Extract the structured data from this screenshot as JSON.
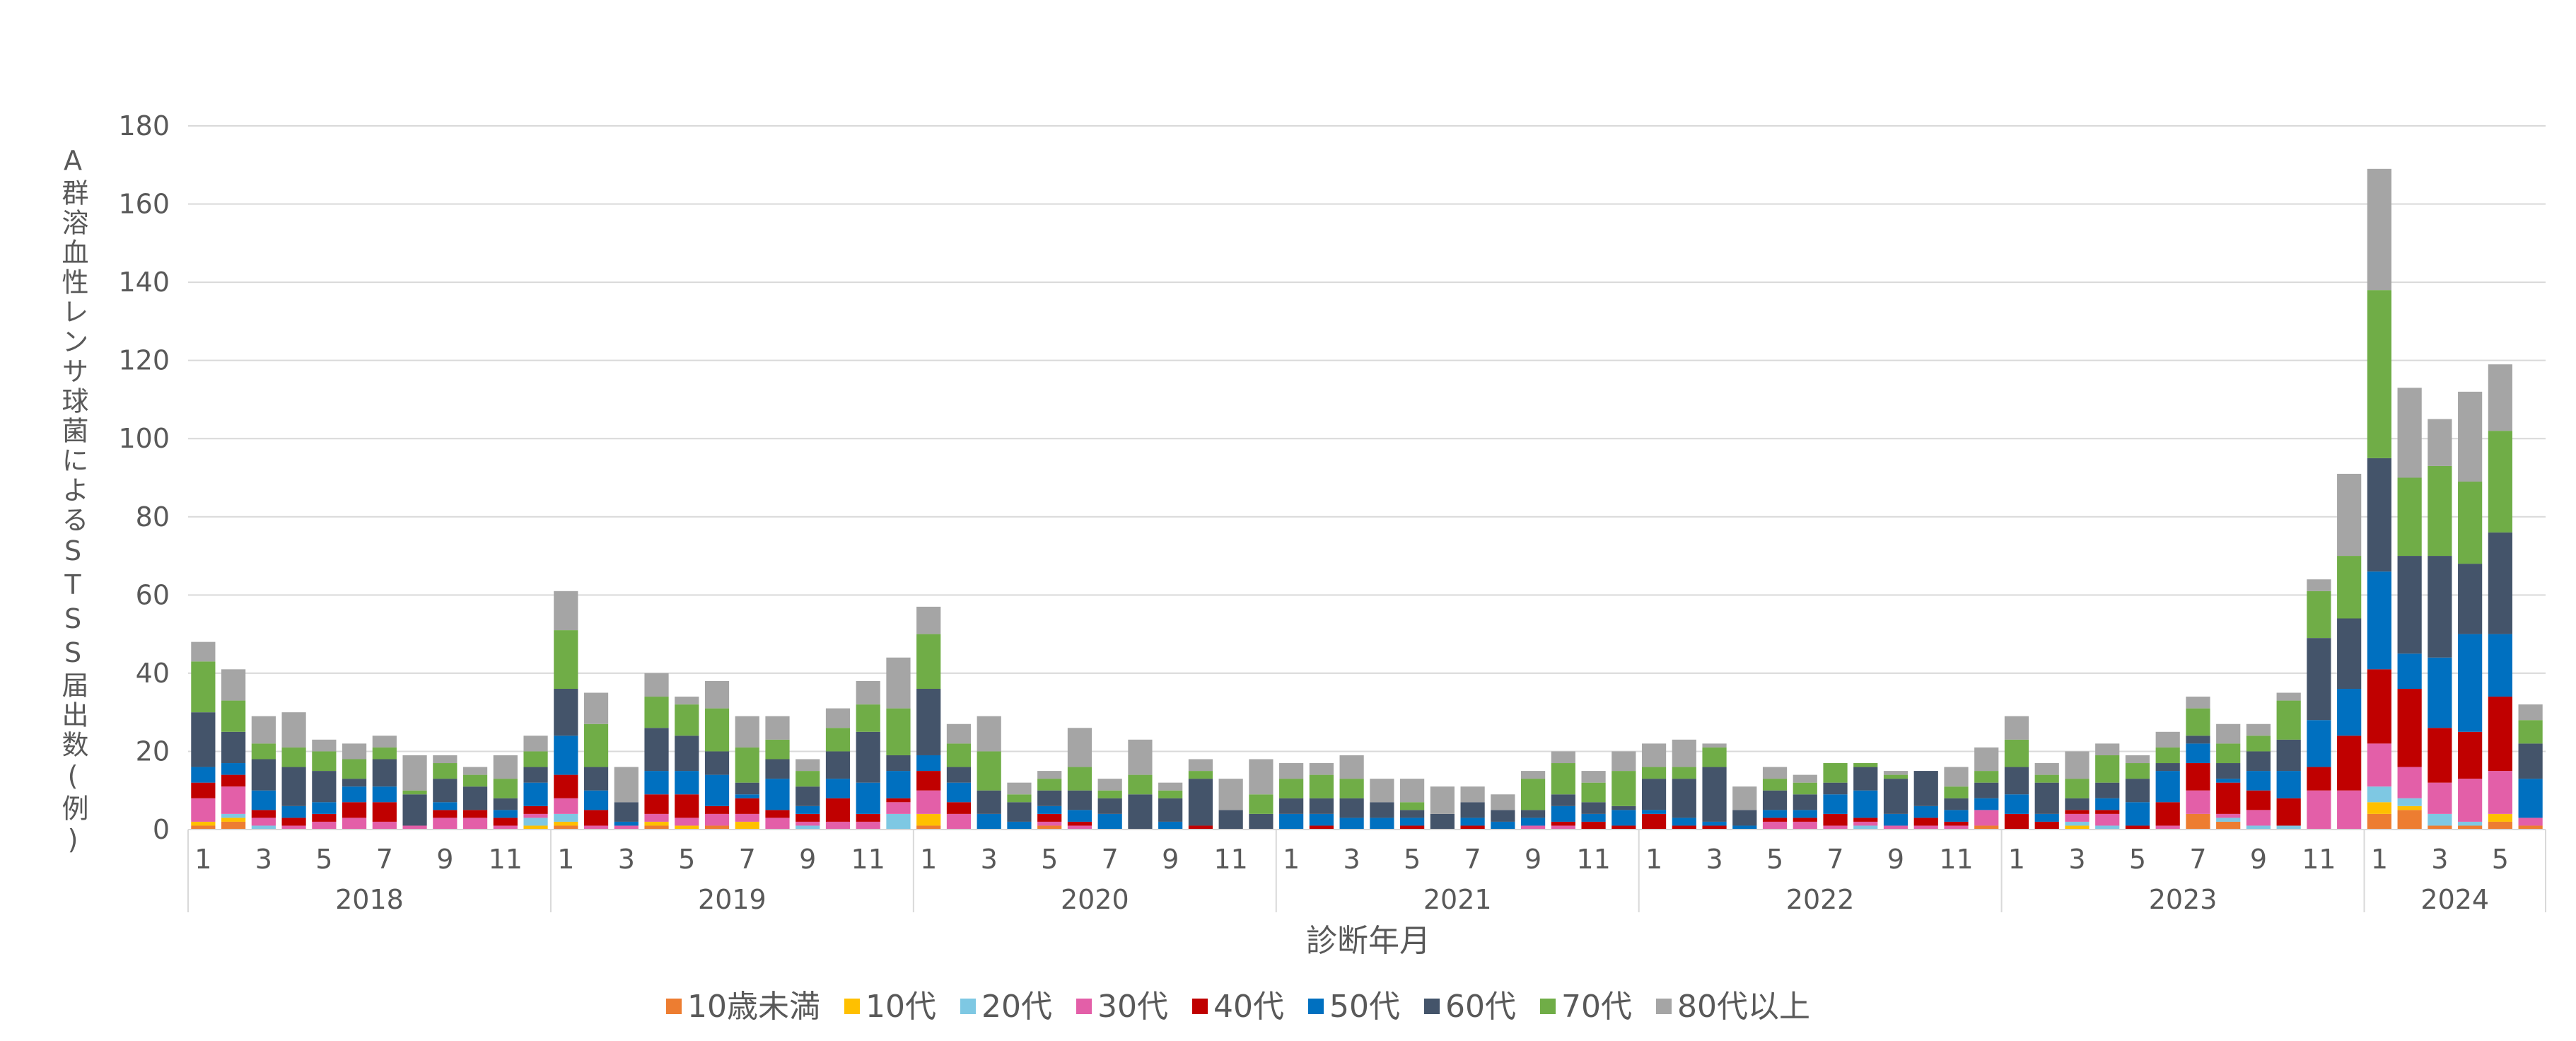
{
  "chart_data": {
    "type": "bar",
    "stacked": true,
    "title": "",
    "ylabel": "A群溶血性レンサ球菌によるSTSS届出数(例)",
    "xlabel": "診断年月",
    "ylim": [
      0,
      180
    ],
    "y_ticks": [
      "0",
      "20",
      "40",
      "60",
      "80",
      "100",
      "120",
      "140",
      "160",
      "180"
    ],
    "grid": true,
    "legend_position": "bottom",
    "years": [
      "2018",
      "2019",
      "2020",
      "2021",
      "2022",
      "2023",
      "2024"
    ],
    "categories": [
      "2018-01",
      "2018-02",
      "2018-03",
      "2018-04",
      "2018-05",
      "2018-06",
      "2018-07",
      "2018-08",
      "2018-09",
      "2018-10",
      "2018-11",
      "2018-12",
      "2019-01",
      "2019-02",
      "2019-03",
      "2019-04",
      "2019-05",
      "2019-06",
      "2019-07",
      "2019-08",
      "2019-09",
      "2019-10",
      "2019-11",
      "2019-12",
      "2020-01",
      "2020-02",
      "2020-03",
      "2020-04",
      "2020-05",
      "2020-06",
      "2020-07",
      "2020-08",
      "2020-09",
      "2020-10",
      "2020-11",
      "2020-12",
      "2021-01",
      "2021-02",
      "2021-03",
      "2021-04",
      "2021-05",
      "2021-06",
      "2021-07",
      "2021-08",
      "2021-09",
      "2021-10",
      "2021-11",
      "2021-12",
      "2022-01",
      "2022-02",
      "2022-03",
      "2022-04",
      "2022-05",
      "2022-06",
      "2022-07",
      "2022-08",
      "2022-09",
      "2022-10",
      "2022-11",
      "2022-12",
      "2023-01",
      "2023-02",
      "2023-03",
      "2023-04",
      "2023-05",
      "2023-06",
      "2023-07",
      "2023-08",
      "2023-09",
      "2023-10",
      "2023-11",
      "2023-12",
      "2024-01",
      "2024-02",
      "2024-03",
      "2024-04",
      "2024-05",
      "2024-06"
    ],
    "month_tick_labels": [
      "1",
      "",
      "3",
      "",
      "5",
      "",
      "7",
      "",
      "9",
      "",
      "11",
      ""
    ],
    "series": [
      {
        "name": "10歳未満",
        "color": "#ED7D31",
        "values": [
          1,
          2,
          0,
          0,
          0,
          0,
          0,
          0,
          0,
          0,
          0,
          0,
          1,
          0,
          0,
          1,
          0,
          1,
          0,
          0,
          0,
          0,
          0,
          0,
          1,
          0,
          0,
          0,
          1,
          0,
          0,
          0,
          0,
          0,
          0,
          0,
          0,
          0,
          0,
          0,
          0,
          0,
          0,
          0,
          0,
          0,
          0,
          0,
          0,
          0,
          0,
          0,
          0,
          0,
          0,
          0,
          0,
          0,
          0,
          1,
          0,
          0,
          0,
          0,
          0,
          0,
          4,
          2,
          0,
          0,
          0,
          0,
          4,
          5,
          1,
          1,
          2,
          1
        ]
      },
      {
        "name": "10代",
        "color": "#FFC000",
        "values": [
          1,
          1,
          0,
          0,
          0,
          0,
          0,
          0,
          0,
          0,
          0,
          1,
          1,
          0,
          0,
          1,
          1,
          0,
          2,
          0,
          0,
          0,
          0,
          0,
          3,
          0,
          0,
          0,
          0,
          0,
          0,
          0,
          0,
          0,
          0,
          0,
          0,
          0,
          0,
          0,
          0,
          0,
          0,
          0,
          0,
          0,
          0,
          0,
          0,
          0,
          0,
          0,
          0,
          0,
          0,
          0,
          0,
          0,
          0,
          0,
          0,
          0,
          1,
          0,
          0,
          0,
          0,
          0,
          0,
          0,
          0,
          0,
          3,
          1,
          0,
          0,
          2,
          0
        ]
      },
      {
        "name": "20代",
        "color": "#7EC8E3",
        "values": [
          0,
          1,
          1,
          0,
          0,
          0,
          0,
          0,
          0,
          0,
          0,
          2,
          2,
          0,
          0,
          0,
          0,
          0,
          0,
          0,
          1,
          0,
          0,
          4,
          0,
          0,
          0,
          0,
          0,
          0,
          0,
          0,
          0,
          0,
          0,
          0,
          0,
          0,
          0,
          0,
          0,
          0,
          0,
          0,
          0,
          0,
          0,
          0,
          0,
          0,
          0,
          0,
          0,
          0,
          0,
          1,
          0,
          0,
          0,
          0,
          0,
          0,
          1,
          1,
          0,
          0,
          0,
          1,
          1,
          1,
          0,
          0,
          4,
          2,
          3,
          1,
          0,
          0
        ]
      },
      {
        "name": "30代",
        "color": "#E35FA8",
        "values": [
          6,
          7,
          2,
          1,
          2,
          3,
          2,
          1,
          3,
          3,
          1,
          1,
          4,
          1,
          1,
          2,
          2,
          3,
          2,
          3,
          1,
          2,
          2,
          3,
          6,
          4,
          0,
          0,
          1,
          1,
          0,
          0,
          0,
          0,
          0,
          0,
          0,
          0,
          0,
          0,
          0,
          0,
          0,
          0,
          1,
          1,
          0,
          0,
          0,
          0,
          0,
          0,
          2,
          2,
          1,
          1,
          1,
          1,
          1,
          4,
          0,
          0,
          2,
          3,
          0,
          1,
          6,
          1,
          4,
          0,
          10,
          10,
          11,
          8,
          8,
          11,
          11,
          2
        ]
      },
      {
        "name": "40代",
        "color": "#C00000",
        "values": [
          4,
          3,
          2,
          2,
          2,
          4,
          5,
          0,
          2,
          2,
          2,
          2,
          6,
          4,
          0,
          5,
          6,
          2,
          4,
          2,
          2,
          6,
          2,
          1,
          5,
          3,
          0,
          0,
          2,
          1,
          0,
          0,
          0,
          1,
          0,
          0,
          0,
          1,
          0,
          0,
          1,
          0,
          1,
          0,
          0,
          1,
          2,
          1,
          4,
          1,
          1,
          0,
          1,
          1,
          3,
          1,
          0,
          2,
          1,
          0,
          4,
          2,
          1,
          1,
          1,
          6,
          7,
          8,
          5,
          7,
          6,
          14,
          19,
          20,
          14,
          12,
          19,
          0
        ]
      },
      {
        "name": "50代",
        "color": "#0070C0",
        "values": [
          4,
          3,
          5,
          3,
          3,
          4,
          4,
          0,
          2,
          0,
          2,
          6,
          10,
          5,
          1,
          6,
          6,
          8,
          1,
          8,
          2,
          5,
          8,
          7,
          4,
          5,
          4,
          2,
          2,
          3,
          4,
          0,
          2,
          0,
          0,
          0,
          4,
          3,
          3,
          3,
          2,
          0,
          2,
          2,
          2,
          4,
          2,
          4,
          1,
          2,
          1,
          1,
          2,
          2,
          5,
          7,
          3,
          3,
          3,
          3,
          5,
          2,
          0,
          3,
          6,
          8,
          5,
          1,
          5,
          7,
          12,
          12,
          25,
          9,
          18,
          25,
          16,
          10
        ]
      },
      {
        "name": "60代",
        "color": "#44546A",
        "values": [
          14,
          8,
          8,
          10,
          8,
          2,
          7,
          8,
          6,
          6,
          3,
          4,
          12,
          6,
          5,
          11,
          9,
          6,
          3,
          5,
          5,
          7,
          13,
          4,
          17,
          4,
          6,
          5,
          4,
          5,
          4,
          9,
          6,
          12,
          5,
          4,
          4,
          4,
          5,
          4,
          2,
          4,
          4,
          3,
          2,
          3,
          3,
          1,
          8,
          10,
          14,
          4,
          5,
          4,
          3,
          6,
          9,
          9,
          3,
          4,
          7,
          8,
          3,
          4,
          6,
          2,
          2,
          4,
          5,
          8,
          21,
          18,
          29,
          25,
          26,
          18,
          26,
          9
        ]
      },
      {
        "name": "70代",
        "color": "#70AD47",
        "values": [
          13,
          8,
          4,
          5,
          5,
          5,
          3,
          1,
          4,
          3,
          5,
          4,
          15,
          11,
          0,
          8,
          8,
          11,
          9,
          5,
          4,
          6,
          7,
          12,
          14,
          6,
          10,
          2,
          3,
          6,
          2,
          5,
          2,
          2,
          0,
          5,
          5,
          6,
          5,
          0,
          2,
          0,
          0,
          0,
          8,
          8,
          5,
          9,
          3,
          3,
          5,
          0,
          3,
          3,
          5,
          1,
          1,
          0,
          3,
          3,
          7,
          2,
          5,
          7,
          4,
          4,
          7,
          5,
          4,
          10,
          12,
          16,
          43,
          20,
          23,
          21,
          26,
          6
        ]
      },
      {
        "name": "80代以上",
        "color": "#A5A5A5",
        "values": [
          5,
          8,
          7,
          9,
          3,
          4,
          3,
          9,
          2,
          2,
          6,
          4,
          10,
          8,
          9,
          6,
          2,
          7,
          8,
          6,
          3,
          5,
          6,
          13,
          7,
          5,
          9,
          3,
          2,
          10,
          3,
          9,
          2,
          3,
          8,
          9,
          4,
          3,
          6,
          6,
          6,
          7,
          4,
          4,
          2,
          3,
          3,
          5,
          6,
          7,
          1,
          6,
          3,
          2,
          0,
          0,
          1,
          0,
          5,
          6,
          6,
          3,
          7,
          3,
          2,
          4,
          3,
          5,
          3,
          2,
          3,
          21,
          31,
          23,
          12,
          23,
          17,
          4
        ]
      }
    ]
  }
}
